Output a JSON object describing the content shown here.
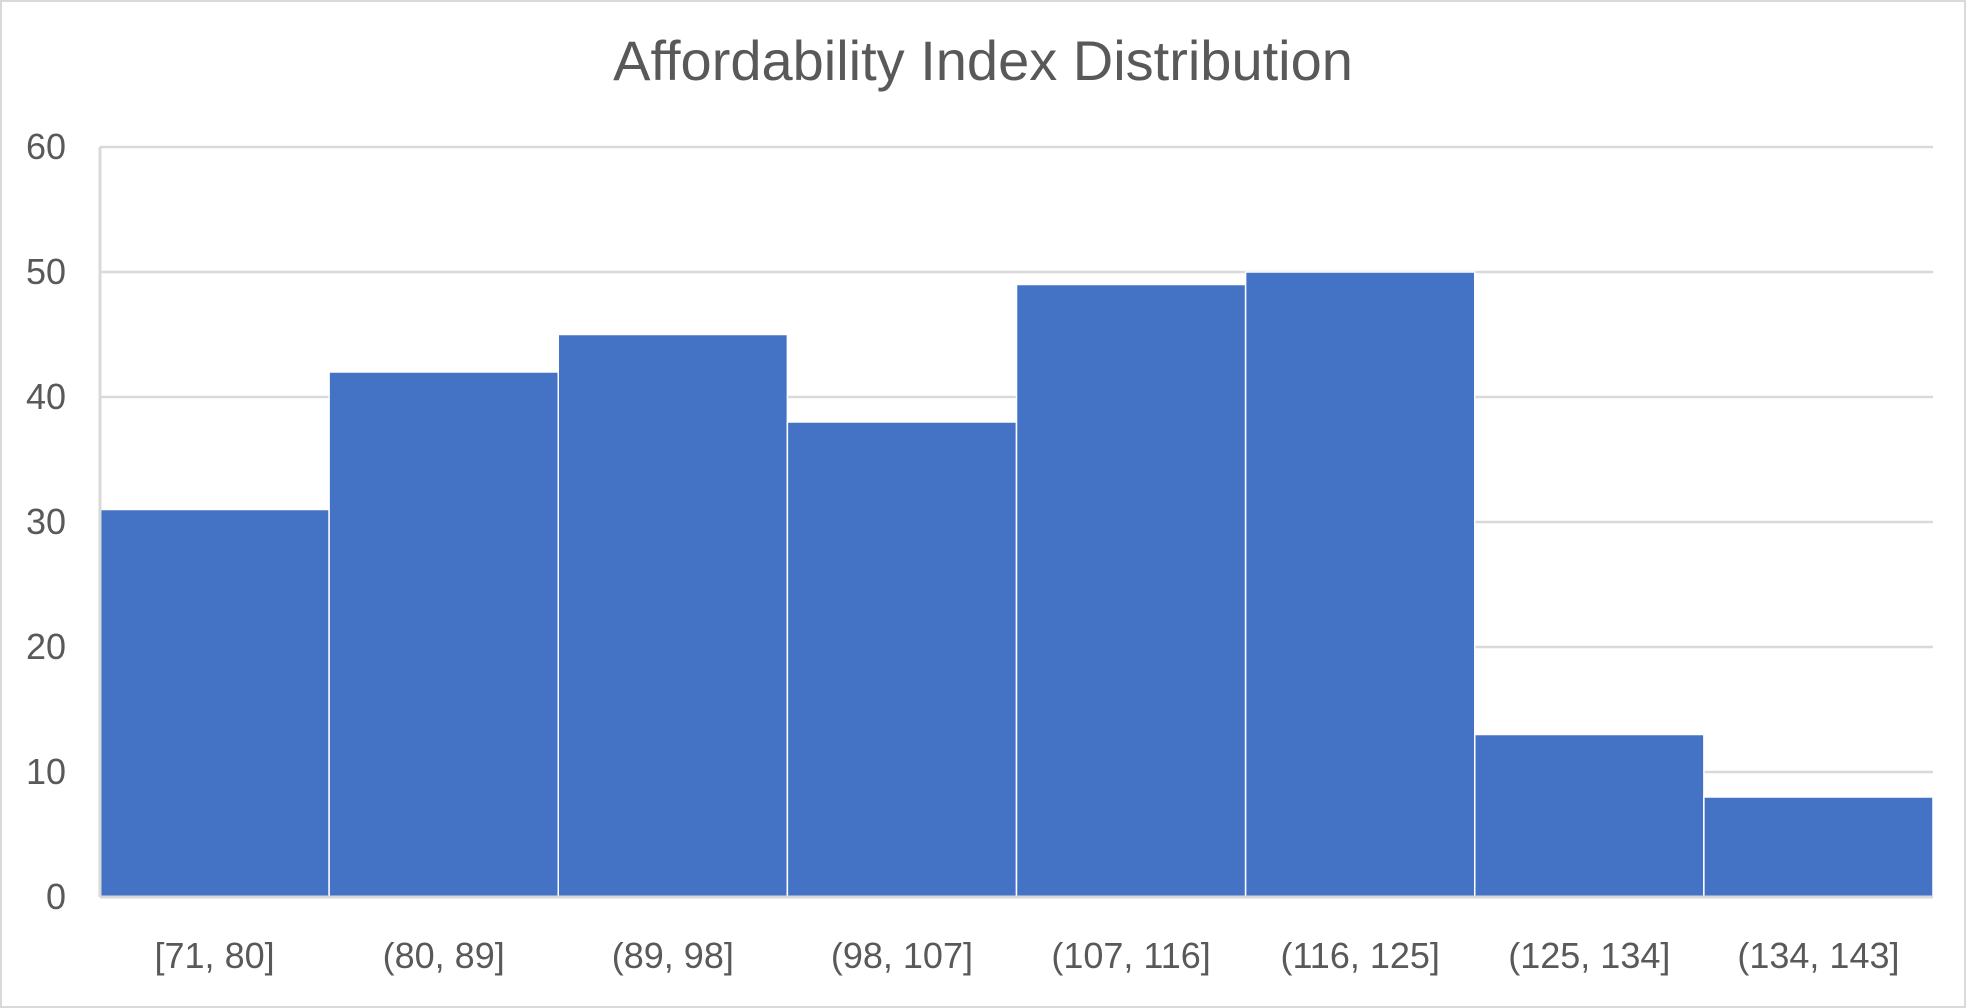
{
  "chart_data": {
    "type": "bar",
    "title": "Affordability Index Distribution",
    "xlabel": "",
    "ylabel": "",
    "categories": [
      "[71, 80]",
      "(80, 89]",
      "(89, 98]",
      "(98, 107]",
      "(107, 116]",
      "(116, 125]",
      "(125, 134]",
      "(134, 143]"
    ],
    "values": [
      31,
      42,
      45,
      38,
      49,
      50,
      13,
      8
    ],
    "ylim": [
      0,
      60
    ],
    "yticks": [
      0,
      10,
      20,
      30,
      40,
      50,
      60
    ],
    "grid": true,
    "legend": "none",
    "bar_color": "#4472C4",
    "grid_color": "#d9d9d9",
    "text_color": "#595959"
  }
}
